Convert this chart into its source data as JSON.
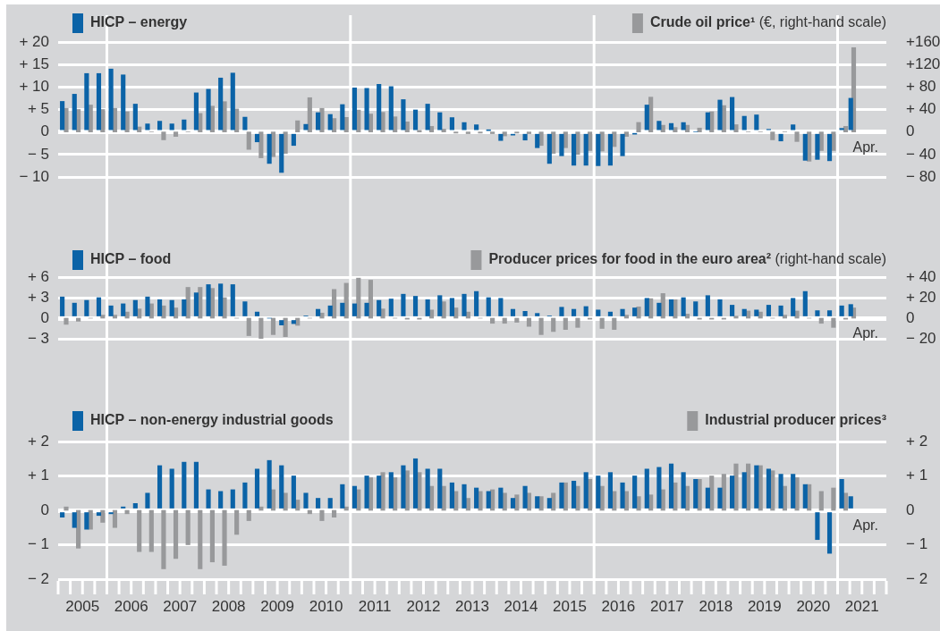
{
  "chart_data": [
    {
      "type": "bar",
      "legend": "top",
      "grid": "y",
      "tick_labels": "y",
      "y2label": "(€, right-hand scale)",
      "series": [
        {
          "name": "HICP – energy",
          "color": "#0b63a7",
          "x": [
            2005.085,
            2005.335,
            2005.585,
            2005.835,
            2006.085,
            2006.335,
            2006.585,
            2006.835,
            2007.085,
            2007.335,
            2007.585,
            2007.835,
            2008.085,
            2008.335,
            2008.585,
            2008.835,
            2009.085,
            2009.335,
            2009.585,
            2009.835,
            2010.085,
            2010.335,
            2010.585,
            2010.835,
            2011.085,
            2011.335,
            2011.585,
            2011.835,
            2012.085,
            2012.335,
            2012.585,
            2012.835,
            2013.085,
            2013.335,
            2013.585,
            2013.835,
            2014.085,
            2014.335,
            2014.585,
            2014.835,
            2015.085,
            2015.335,
            2015.585,
            2015.835,
            2016.085,
            2016.335,
            2016.585,
            2016.835,
            2017.085,
            2017.335,
            2017.585,
            2017.835,
            2018.085,
            2018.335,
            2018.585,
            2018.835,
            2019.085,
            2019.335,
            2019.585,
            2019.835,
            2020.085,
            2020.335,
            2020.585,
            2020.835,
            2021.085,
            2021.27
          ],
          "values": [
            6.8,
            8.4,
            13.0,
            13.0,
            14.0,
            12.7,
            6.2,
            1.8,
            2.4,
            1.8,
            2.7,
            8.7,
            9.5,
            12.0,
            13.1,
            3.3,
            -2.2,
            -7.0,
            -9.0,
            -3.0,
            1.7,
            4.3,
            3.9,
            6.1,
            9.8,
            9.7,
            10.6,
            10.1,
            7.2,
            4.9,
            6.2,
            4.3,
            3.2,
            2.1,
            1.6,
            0.3,
            -1.9,
            -0.7,
            -1.8,
            -3.5,
            -7.0,
            -5.3,
            -7.4,
            -7.4,
            -7.5,
            -7.4,
            -5.3,
            -0.3,
            6.0,
            2.4,
            1.9,
            2.1,
            0,
            4.3,
            7.1,
            7.7,
            3.5,
            3.8,
            0.6,
            -2.0,
            1.6,
            -6.3,
            -6.1,
            -6.4,
            0.8,
            7.5
          ]
        },
        {
          "name": "Crude oil price¹",
          "color": "#98999b",
          "axis": "y2",
          "x": [
            2005.165,
            2005.415,
            2005.665,
            2005.915,
            2006.165,
            2006.415,
            2006.665,
            2006.915,
            2007.165,
            2007.415,
            2007.665,
            2007.915,
            2008.165,
            2008.415,
            2008.665,
            2008.915,
            2009.165,
            2009.415,
            2009.665,
            2009.915,
            2010.165,
            2010.415,
            2010.665,
            2010.915,
            2011.165,
            2011.415,
            2011.665,
            2011.915,
            2012.165,
            2012.415,
            2012.665,
            2012.915,
            2013.165,
            2013.415,
            2013.665,
            2013.915,
            2014.165,
            2014.415,
            2014.665,
            2014.915,
            2015.165,
            2015.415,
            2015.665,
            2015.915,
            2016.165,
            2016.415,
            2016.665,
            2016.915,
            2017.165,
            2017.415,
            2017.665,
            2017.915,
            2018.165,
            2018.415,
            2018.665,
            2018.915,
            2019.165,
            2019.415,
            2019.665,
            2019.915,
            2020.165,
            2020.415,
            2020.665,
            2020.915,
            2021.165,
            2021.33
          ],
          "values": [
            42,
            40,
            48,
            40,
            42,
            36,
            9,
            0,
            -14,
            -8,
            0,
            33,
            46,
            54,
            41,
            -31,
            -46,
            -44,
            -38,
            20,
            61,
            42,
            24,
            26,
            39,
            32,
            35,
            27,
            18,
            3,
            10,
            5,
            -2,
            -3,
            -2,
            -3,
            -7,
            -2,
            -3,
            -24,
            -38,
            -28,
            -40,
            -33,
            -34,
            -26,
            -8,
            17,
            62,
            12,
            8,
            12,
            7,
            36,
            47,
            13,
            0,
            0,
            -14,
            0,
            -17,
            -52,
            -33,
            -33,
            10,
            150
          ]
        }
      ],
      "xlim": [
        2005,
        2022
      ],
      "ylim": [
        -10,
        20
      ],
      "yticks": [
        {
          "value": -10,
          "label": "− 10"
        },
        {
          "value": -5,
          "label": "− 5"
        },
        {
          "value": 0,
          "label": "0"
        },
        {
          "value": 5,
          "label": "+ 5"
        },
        {
          "value": 10,
          "label": "+ 10"
        },
        {
          "value": 15,
          "label": "+ 15"
        },
        {
          "value": 20,
          "label": "+ 20"
        }
      ],
      "y2lim": [
        -80,
        160
      ],
      "y2ticks": [
        {
          "value": -80,
          "label": "− 80"
        },
        {
          "value": -40,
          "label": "− 40"
        },
        {
          "value": 0,
          "label": "0"
        },
        {
          "value": 40,
          "label": "+ 40"
        },
        {
          "value": 80,
          "label": "+ 80"
        },
        {
          "value": 120,
          "label": "+120"
        },
        {
          "value": 160,
          "label": "+160"
        }
      ],
      "ref_lines": [
        {
          "axis": "x",
          "value": 2006,
          "color": "#ffffff"
        },
        {
          "axis": "x",
          "value": 2011,
          "color": "#ffffff"
        },
        {
          "axis": "x",
          "value": 2016,
          "color": "#ffffff"
        },
        {
          "axis": "x",
          "value": 2021,
          "color": "#ffffff"
        }
      ],
      "annotations": [
        "Apr."
      ]
    },
    {
      "type": "bar",
      "legend": "top",
      "grid": "y",
      "tick_labels": "y",
      "y2label": "(right-hand scale)",
      "series": [
        {
          "name": "HICP – food",
          "color": "#0b63a7",
          "x": [
            2005.085,
            2005.335,
            2005.585,
            2005.835,
            2006.085,
            2006.335,
            2006.585,
            2006.835,
            2007.085,
            2007.335,
            2007.585,
            2007.835,
            2008.085,
            2008.335,
            2008.585,
            2008.835,
            2009.085,
            2009.335,
            2009.585,
            2009.835,
            2010.085,
            2010.335,
            2010.585,
            2010.835,
            2011.085,
            2011.335,
            2011.585,
            2011.835,
            2012.085,
            2012.335,
            2012.585,
            2012.835,
            2013.085,
            2013.335,
            2013.585,
            2013.835,
            2014.085,
            2014.335,
            2014.585,
            2014.835,
            2015.085,
            2015.335,
            2015.585,
            2015.835,
            2016.085,
            2016.335,
            2016.585,
            2016.835,
            2017.085,
            2017.335,
            2017.585,
            2017.835,
            2018.085,
            2018.335,
            2018.585,
            2018.835,
            2019.085,
            2019.335,
            2019.585,
            2019.835,
            2020.085,
            2020.335,
            2020.585,
            2020.835,
            2021.085,
            2021.27
          ],
          "values": [
            3.1,
            2.2,
            2.6,
            3.0,
            1.8,
            2.1,
            2.6,
            3.1,
            2.7,
            2.6,
            2.7,
            3.7,
            4.9,
            5.0,
            4.9,
            2.4,
            0.9,
            0,
            -1.0,
            -0.8,
            0.3,
            1.3,
            1.8,
            2.2,
            2.1,
            2.2,
            2.6,
            2.8,
            3.5,
            3.2,
            2.7,
            3.3,
            2.9,
            3.5,
            3.9,
            3.0,
            2.9,
            1.3,
            1.0,
            0.7,
            0.3,
            1.6,
            1.3,
            1.7,
            1.2,
            0.9,
            1.3,
            1.5,
            2.9,
            2.2,
            2.7,
            3.0,
            2.4,
            3.3,
            2.7,
            1.9,
            1.3,
            1.2,
            1.9,
            1.8,
            2.9,
            3.9,
            1.1,
            1.1,
            1.8,
            2.0
          ]
        },
        {
          "name": "Producer prices for food in the euro area²",
          "color": "#98999b",
          "axis": "y2",
          "x": [
            2005.165,
            2005.415,
            2005.665,
            2005.915,
            2006.165,
            2006.415,
            2006.665,
            2006.915,
            2007.165,
            2007.415,
            2007.665,
            2007.915,
            2008.165,
            2008.415,
            2008.665,
            2008.915,
            2009.165,
            2009.415,
            2009.665,
            2009.915,
            2010.165,
            2010.415,
            2010.665,
            2010.915,
            2011.165,
            2011.415,
            2011.665,
            2011.915,
            2012.165,
            2012.415,
            2012.665,
            2012.915,
            2013.165,
            2013.415,
            2013.665,
            2013.915,
            2014.165,
            2014.415,
            2014.665,
            2014.915,
            2015.165,
            2015.415,
            2015.665,
            2015.915,
            2016.165,
            2016.415,
            2016.665,
            2016.915,
            2017.165,
            2017.415,
            2017.665,
            2017.915,
            2018.165,
            2018.415,
            2018.665,
            2018.915,
            2019.165,
            2019.415,
            2019.665,
            2019.915,
            2020.165,
            2020.415,
            2020.665,
            2020.915,
            2021.165,
            2021.33
          ],
          "values": [
            -6,
            -3,
            0,
            3,
            3,
            6,
            9,
            14,
            12,
            10,
            30,
            30,
            29,
            20,
            0,
            -17,
            -20,
            -16,
            -18,
            -7,
            0,
            5,
            28,
            34,
            39,
            37,
            9,
            0,
            -1,
            -1,
            8,
            16,
            10,
            6,
            0,
            -5,
            -5,
            -4,
            -8,
            -16,
            -13,
            -11,
            -9,
            -1,
            -10,
            -11,
            3,
            11,
            19,
            24,
            18,
            4,
            -1,
            -1,
            -1,
            2,
            7,
            6,
            0,
            3,
            7,
            0,
            -5,
            -9,
            -1,
            10
          ]
        }
      ],
      "xlim": [
        2005,
        2022
      ],
      "ylim": [
        -3,
        6
      ],
      "yticks": [
        {
          "value": -3,
          "label": "− 3"
        },
        {
          "value": 0,
          "label": "0"
        },
        {
          "value": 3,
          "label": "+ 3"
        },
        {
          "value": 6,
          "label": "+ 6"
        }
      ],
      "y2lim": [
        -20,
        40
      ],
      "y2ticks": [
        {
          "value": -20,
          "label": "− 20"
        },
        {
          "value": 0,
          "label": "0"
        },
        {
          "value": 20,
          "label": "+ 20"
        },
        {
          "value": 40,
          "label": "+ 40"
        }
      ],
      "ref_lines": [
        {
          "axis": "x",
          "value": 2006,
          "color": "#ffffff"
        },
        {
          "axis": "x",
          "value": 2011,
          "color": "#ffffff"
        },
        {
          "axis": "x",
          "value": 2016,
          "color": "#ffffff"
        },
        {
          "axis": "x",
          "value": 2021,
          "color": "#ffffff"
        }
      ],
      "annotations": [
        "Apr."
      ]
    },
    {
      "type": "bar",
      "legend": "top",
      "grid": "y",
      "series": [
        {
          "name": "HICP – non-energy industrial goods",
          "color": "#0b63a7",
          "x": [
            2005.085,
            2005.335,
            2005.585,
            2005.835,
            2006.085,
            2006.335,
            2006.585,
            2006.835,
            2007.085,
            2007.335,
            2007.585,
            2007.835,
            2008.085,
            2008.335,
            2008.585,
            2008.835,
            2009.085,
            2009.335,
            2009.585,
            2009.835,
            2010.085,
            2010.335,
            2010.585,
            2010.835,
            2011.085,
            2011.335,
            2011.585,
            2011.835,
            2012.085,
            2012.335,
            2012.585,
            2012.835,
            2013.085,
            2013.335,
            2013.585,
            2013.835,
            2014.085,
            2014.335,
            2014.585,
            2014.835,
            2015.085,
            2015.335,
            2015.585,
            2015.835,
            2016.085,
            2016.335,
            2016.585,
            2016.835,
            2017.085,
            2017.335,
            2017.585,
            2017.835,
            2018.085,
            2018.335,
            2018.585,
            2018.835,
            2019.085,
            2019.335,
            2019.585,
            2019.835,
            2020.085,
            2020.335,
            2020.585,
            2020.835,
            2021.085,
            2021.27
          ],
          "values": [
            -0.2,
            -0.5,
            -0.55,
            -0.15,
            -0.1,
            0.1,
            0.2,
            0.5,
            1.3,
            1.2,
            1.4,
            1.4,
            0.6,
            0.55,
            0.6,
            0.8,
            1.2,
            1.45,
            1.3,
            1.0,
            0.5,
            0.35,
            0.35,
            0.75,
            0.7,
            1.0,
            1.0,
            1.1,
            1.3,
            1.5,
            1.2,
            1.2,
            0.8,
            0.75,
            0.65,
            0.55,
            0.65,
            0.35,
            0.7,
            0.4,
            0.35,
            0.8,
            0.85,
            1.1,
            1.0,
            1.1,
            0.8,
            1.0,
            1.2,
            1.25,
            1.35,
            1.1,
            0.9,
            0.65,
            0.65,
            1.0,
            1.1,
            1.3,
            1.2,
            1.05,
            1.05,
            0.75,
            -0.85,
            -1.25,
            0.9,
            0.4
          ]
        },
        {
          "name": "Industrial producer prices³",
          "color": "#98999b",
          "axis": "y2",
          "x": [
            2005.165,
            2005.415,
            2005.665,
            2005.915,
            2006.165,
            2006.415,
            2006.665,
            2006.915,
            2007.165,
            2007.415,
            2007.665,
            2007.915,
            2008.165,
            2008.415,
            2008.665,
            2008.915,
            2009.165,
            2009.415,
            2009.665,
            2009.915,
            2010.165,
            2010.415,
            2010.665,
            2010.915,
            2011.165,
            2011.415,
            2011.665,
            2011.915,
            2012.165,
            2012.415,
            2012.665,
            2012.915,
            2013.165,
            2013.415,
            2013.665,
            2013.915,
            2014.165,
            2014.415,
            2014.665,
            2014.915,
            2015.165,
            2015.415,
            2015.665,
            2015.915,
            2016.165,
            2016.415,
            2016.665,
            2016.915,
            2017.165,
            2017.415,
            2017.665,
            2017.915,
            2018.165,
            2018.415,
            2018.665,
            2018.915,
            2019.165,
            2019.415,
            2019.665,
            2019.915,
            2020.165,
            2020.415,
            2020.665,
            2020.915,
            2021.165
          ],
          "values": [
            0.1,
            -1.1,
            -0.55,
            -0.35,
            -0.5,
            -0.1,
            -1.2,
            -1.2,
            -1.7,
            -1.4,
            -1.0,
            -1.7,
            -1.5,
            -1.6,
            -0.7,
            -0.3,
            0.1,
            0.6,
            0.5,
            0.3,
            -0.1,
            -0.3,
            -0.2,
            0.1,
            0.6,
            0.95,
            1.1,
            0.95,
            1.15,
            1.1,
            0.7,
            0.7,
            0.55,
            0.35,
            0.55,
            0.6,
            0.5,
            0.45,
            0.5,
            0.4,
            0.5,
            0.8,
            0.7,
            0.9,
            0.7,
            0.55,
            0.55,
            0.4,
            0.45,
            0.6,
            0.8,
            0.7,
            0.9,
            1.0,
            1.05,
            1.35,
            1.35,
            1.3,
            1.15,
            0.7,
            0.95,
            0.75,
            0.55,
            0.65,
            0.5
          ]
        }
      ],
      "xlim": [
        2005,
        2022
      ],
      "xticks": [
        {
          "value": 2005,
          "label": null
        },
        {
          "value": 2005.25,
          "label": null
        },
        {
          "value": 2005.5,
          "label": "2005"
        },
        {
          "value": 2005.75,
          "label": null
        },
        {
          "value": 2006,
          "label": null
        },
        {
          "value": 2006.25,
          "label": null
        },
        {
          "value": 2006.5,
          "label": "2006"
        },
        {
          "value": 2006.75,
          "label": null
        },
        {
          "value": 2007,
          "label": null
        },
        {
          "value": 2007.25,
          "label": null
        },
        {
          "value": 2007.5,
          "label": "2007"
        },
        {
          "value": 2007.75,
          "label": null
        },
        {
          "value": 2008,
          "label": null
        },
        {
          "value": 2008.25,
          "label": null
        },
        {
          "value": 2008.5,
          "label": "2008"
        },
        {
          "value": 2008.75,
          "label": null
        },
        {
          "value": 2009,
          "label": null
        },
        {
          "value": 2009.25,
          "label": null
        },
        {
          "value": 2009.5,
          "label": "2009"
        },
        {
          "value": 2009.75,
          "label": null
        },
        {
          "value": 2010,
          "label": null
        },
        {
          "value": 2010.25,
          "label": null
        },
        {
          "value": 2010.5,
          "label": "2010"
        },
        {
          "value": 2010.75,
          "label": null
        },
        {
          "value": 2011,
          "label": null
        },
        {
          "value": 2011.25,
          "label": null
        },
        {
          "value": 2011.5,
          "label": "2011"
        },
        {
          "value": 2011.75,
          "label": null
        },
        {
          "value": 2012,
          "label": null
        },
        {
          "value": 2012.25,
          "label": null
        },
        {
          "value": 2012.5,
          "label": "2012"
        },
        {
          "value": 2012.75,
          "label": null
        },
        {
          "value": 2013,
          "label": null
        },
        {
          "value": 2013.25,
          "label": null
        },
        {
          "value": 2013.5,
          "label": "2013"
        },
        {
          "value": 2013.75,
          "label": null
        },
        {
          "value": 2014,
          "label": null
        },
        {
          "value": 2014.25,
          "label": null
        },
        {
          "value": 2014.5,
          "label": "2014"
        },
        {
          "value": 2014.75,
          "label": null
        },
        {
          "value": 2015,
          "label": null
        },
        {
          "value": 2015.25,
          "label": null
        },
        {
          "value": 2015.5,
          "label": "2015"
        },
        {
          "value": 2015.75,
          "label": null
        },
        {
          "value": 2016,
          "label": null
        },
        {
          "value": 2016.25,
          "label": null
        },
        {
          "value": 2016.5,
          "label": "2016"
        },
        {
          "value": 2016.75,
          "label": null
        },
        {
          "value": 2017,
          "label": null
        },
        {
          "value": 2017.25,
          "label": null
        },
        {
          "value": 2017.5,
          "label": "2017"
        },
        {
          "value": 2017.75,
          "label": null
        },
        {
          "value": 2018,
          "label": null
        },
        {
          "value": 2018.25,
          "label": null
        },
        {
          "value": 2018.5,
          "label": "2018"
        },
        {
          "value": 2018.75,
          "label": null
        },
        {
          "value": 2019,
          "label": null
        },
        {
          "value": 2019.25,
          "label": null
        },
        {
          "value": 2019.5,
          "label": "2019"
        },
        {
          "value": 2019.75,
          "label": null
        },
        {
          "value": 2020,
          "label": null
        },
        {
          "value": 2020.25,
          "label": null
        },
        {
          "value": 2020.5,
          "label": "2020"
        },
        {
          "value": 2020.75,
          "label": null
        },
        {
          "value": 2021,
          "label": null
        },
        {
          "value": 2021.25,
          "label": null
        },
        {
          "value": 2021.5,
          "label": "2021"
        },
        {
          "value": 2021.75,
          "label": null
        },
        {
          "value": 2022,
          "label": null
        }
      ],
      "ylim": [
        -2,
        2
      ],
      "yticks": [
        {
          "value": -2,
          "label": "− 2"
        },
        {
          "value": -1,
          "label": "− 1"
        },
        {
          "value": 0,
          "label": "0"
        },
        {
          "value": 1,
          "label": "+ 1"
        },
        {
          "value": 2,
          "label": "+ 2"
        }
      ],
      "y2lim": [
        -2,
        2
      ],
      "y2ticks": [
        {
          "value": -2,
          "label": "− 2"
        },
        {
          "value": -1,
          "label": "− 1"
        },
        {
          "value": 0,
          "label": "0"
        },
        {
          "value": 1,
          "label": "+ 1"
        },
        {
          "value": 2,
          "label": "+ 2"
        }
      ],
      "ref_lines": [
        {
          "axis": "x",
          "value": 2006,
          "color": "#ffffff"
        },
        {
          "axis": "x",
          "value": 2011,
          "color": "#ffffff"
        },
        {
          "axis": "x",
          "value": 2016,
          "color": "#ffffff"
        },
        {
          "axis": "x",
          "value": 2021,
          "color": "#ffffff"
        }
      ],
      "annotations": [
        "Apr."
      ]
    }
  ]
}
